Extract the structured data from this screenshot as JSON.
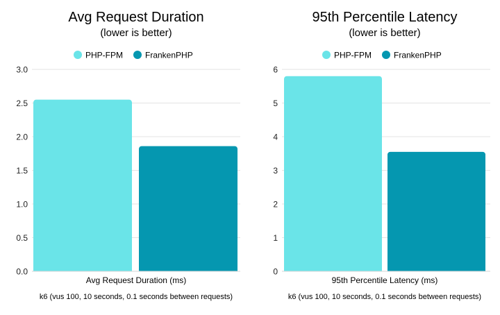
{
  "chart_data": [
    {
      "type": "bar",
      "title": "Avg Request Duration",
      "subtitle": "(lower is better)",
      "series": [
        {
          "name": "PHP-FPM",
          "color": "#6ae4e8",
          "values": [
            2.55
          ]
        },
        {
          "name": "FrankenPHP",
          "color": "#0597b0",
          "values": [
            1.86
          ]
        }
      ],
      "xlabel": "Avg Request Duration (ms)",
      "note": "k6 (vus 100, 10 seconds, 0.1 seconds between requests)",
      "ylim": [
        0,
        3
      ],
      "yticks": [
        "0.0",
        "0.5",
        "1.0",
        "1.5",
        "2.0",
        "2.5",
        "3.0"
      ],
      "grid": true,
      "legend": "top"
    },
    {
      "type": "bar",
      "title": "95th Percentile Latency",
      "subtitle": "(lower is better)",
      "series": [
        {
          "name": "PHP-FPM",
          "color": "#6ae4e8",
          "values": [
            5.8
          ]
        },
        {
          "name": "FrankenPHP",
          "color": "#0597b0",
          "values": [
            3.55
          ]
        }
      ],
      "xlabel": "95th Percentile Latency (ms)",
      "note": "k6 (vus 100, 10 seconds, 0.1 seconds between requests)",
      "ylim": [
        0,
        6
      ],
      "yticks": [
        "0",
        "1",
        "2",
        "3",
        "4",
        "5",
        "6"
      ],
      "grid": true,
      "legend": "top"
    }
  ]
}
